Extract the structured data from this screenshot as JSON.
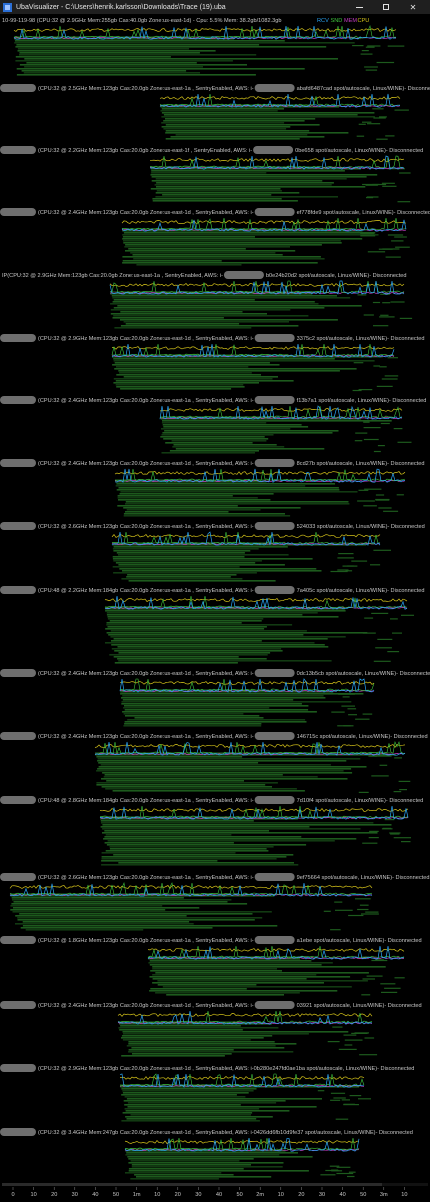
{
  "window": {
    "title": "UbaVisualizer - C:\\Users\\henrik.karlsson\\Downloads\\Trace (19).uba",
    "minimize_icon": "minimize-icon",
    "maximize_icon": "maximize-icon",
    "close_icon": "close-icon"
  },
  "legend": [
    {
      "label": "RCV",
      "color": "#2aa4f4"
    },
    {
      "label": "SND",
      "color": "#3ec43e"
    },
    {
      "label": "MEM",
      "color": "#c23cc2"
    },
    {
      "label": "CPU",
      "color": "#d4c21a"
    }
  ],
  "colors": {
    "rcv": "#2aa4f4",
    "snd": "#3ec43e",
    "mem": "#c23cc2",
    "cpu": "#d4c21a",
    "process_bar": "#1d5a1d",
    "process_bar_dark": "#123a12",
    "header_text": "#c8c8c8",
    "redaction": "#6e6e6e"
  },
  "sessions": [
    {
      "header": "10-99-119-98 (CPU:32 @ 2.9GHz Mem:255gb Cas:40.0gb Zone:us-east-1d) - Cpu: 5.5% Mem: 38.2gb/1082.3gb",
      "redacted_prefix": false,
      "aws_tail": "",
      "status": ""
    },
    {
      "header": "(CPU:32 @ 2.5GHz Mem:123gb Cas:20.0gb Zone:us-east-1a , SentryEnabled, AWS: i-",
      "redacted_prefix": true,
      "aws_tail": "abafd6487cad spot/autoscale, Linux/WINE)",
      "status": " - Disconnected"
    },
    {
      "header": "(CPU:32 @ 2.2GHz Mem:123gb Cas:20.0gb Zone:us-east-1f , SentryEnabled, AWS: i-",
      "redacted_prefix": true,
      "aws_tail": "0be658 spot/autoscale, Linux/WINE)",
      "status": " - Disconnected"
    },
    {
      "header": "(CPU:32 @ 2.4GHz Mem:123gb Cas:20.0gb Zone:us-east-1d , SentryEnabled, AWS: i-",
      "redacted_prefix": true,
      "aws_tail": "ef778fde9 spot/autoscale, Linux/WINE)",
      "status": " - Disconnected"
    },
    {
      "header": "IP(CPU:32 @ 2.9GHz Mem:123gb Cas:20.0gb Zone:us-east-1a , SentryEnabled, AWS: i-",
      "redacted_prefix": false,
      "aws_tail": "b0e24b20d2 spot/autoscale, Linux/WINE)",
      "status": " - Disconnected"
    },
    {
      "header": "(CPU:32 @ 2.9GHz Mem:123gb Cas:20.0gb Zone:us-east-1d , SentryEnabled, AWS: i-",
      "redacted_prefix": true,
      "aws_tail": "3375c2 spot/autoscale, Linux/WINE)",
      "status": " - Disconnected"
    },
    {
      "header": "(CPU:32 @ 2.4GHz Mem:123gb Cas:20.0gb Zone:us-east-1a , SentryEnabled, AWS: i-",
      "redacted_prefix": true,
      "aws_tail": "f13b7a1 spot/autoscale, Linux/WINE)",
      "status": " - Disconnected"
    },
    {
      "header": "(CPU:32 @ 2.4GHz Mem:123gb Cas:20.0gb Zone:us-east-1d , SentryEnabled, AWS: i-",
      "redacted_prefix": true,
      "aws_tail": "8cd27b spot/autoscale, Linux/WINE)",
      "status": " - Disconnected"
    },
    {
      "header": "(CPU:32 @ 2.6GHz Mem:123gb Cas:20.0gb Zone:us-east-1a , SentryEnabled, AWS: i-",
      "redacted_prefix": true,
      "aws_tail": "524033 spot/autoscale, Linux/WINE)",
      "status": " - Disconnected"
    },
    {
      "header": "(CPU:48 @ 2.2GHz Mem:184gb Cas:20.0gb Zone:us-east-1a , SentryEnabled, AWS: i-",
      "redacted_prefix": true,
      "aws_tail": "7a405c spot/autoscale, Linux/WINE)",
      "status": " - Disconnected"
    },
    {
      "header": "(CPU:32 @ 2.4GHz Mem:123gb Cas:20.0gb Zone:us-east-1d , SentryEnabled, AWS: i-",
      "redacted_prefix": true,
      "aws_tail": "0dc13b5cb spot/autoscale, Linux/WINE)",
      "status": " - Disconnected"
    },
    {
      "header": "(CPU:32 @ 2.4GHz Mem:123gb Cas:20.0gb Zone:us-east-1a , SentryEnabled, AWS: i-",
      "redacted_prefix": true,
      "aws_tail": "146715c spot/autoscale, Linux/WINE)",
      "status": " - Disconnected"
    },
    {
      "header": "(CPU:48 @ 2.8GHz Mem:184gb Cas:20.0gb Zone:us-east-1a , SentryEnabled, AWS: i-",
      "redacted_prefix": true,
      "aws_tail": "7d10f4 spot/autoscale, Linux/WINE)",
      "status": " - Disconnected"
    },
    {
      "header": "(CPU:32 @ 2.6GHz Mem:123gb Cas:20.0gb Zone:us-east-1a , SentryEnabled, AWS: i-",
      "redacted_prefix": true,
      "aws_tail": "9ef75664 spot/autoscale, Linux/WINE)",
      "status": " - Disconnected"
    },
    {
      "header": "(CPU:32 @ 1.8GHz Mem:123gb Cas:20.0gb Zone:us-east-1a , SentryEnabled, AWS: i-",
      "redacted_prefix": true,
      "aws_tail": "a1ebe spot/autoscale, Linux/WINE)",
      "status": " - Disconnected"
    },
    {
      "header": "(CPU:32 @ 2.4GHz Mem:123gb Cas:20.0gb Zone:us-east-1d , SentryEnabled, AWS: i-",
      "redacted_prefix": true,
      "aws_tail": "03921 spot/autoscale, Linux/WINE)",
      "status": " - Disconnected"
    },
    {
      "header": "(CPU:32 @ 2.9GHz Mem:123gb Cas:20.0gb Zone:us-east-1d , SentryEnabled, AWS: i-0b280e247fd0ae1ba spot/autoscale, Linux/WINE)",
      "redacted_prefix": true,
      "aws_tail": "",
      "status": " - Disconnected"
    },
    {
      "header": "(CPU:32 @ 3.4GHz Mem:247gb Cas:20.0gb Zone:us-east-1d , SentryEnabled, AWS: i-0426dd6fb10d9fe37 spot/autoscale, Linux/WINE)",
      "redacted_prefix": true,
      "aws_tail": "",
      "status": " - Disconnected"
    }
  ],
  "time_axis": {
    "ticks": [
      "0",
      "10",
      "20",
      "30",
      "40",
      "50",
      "1m",
      "10",
      "20",
      "30",
      "40",
      "50",
      "2m",
      "10",
      "20",
      "30",
      "40",
      "50",
      "3m",
      "10"
    ]
  }
}
